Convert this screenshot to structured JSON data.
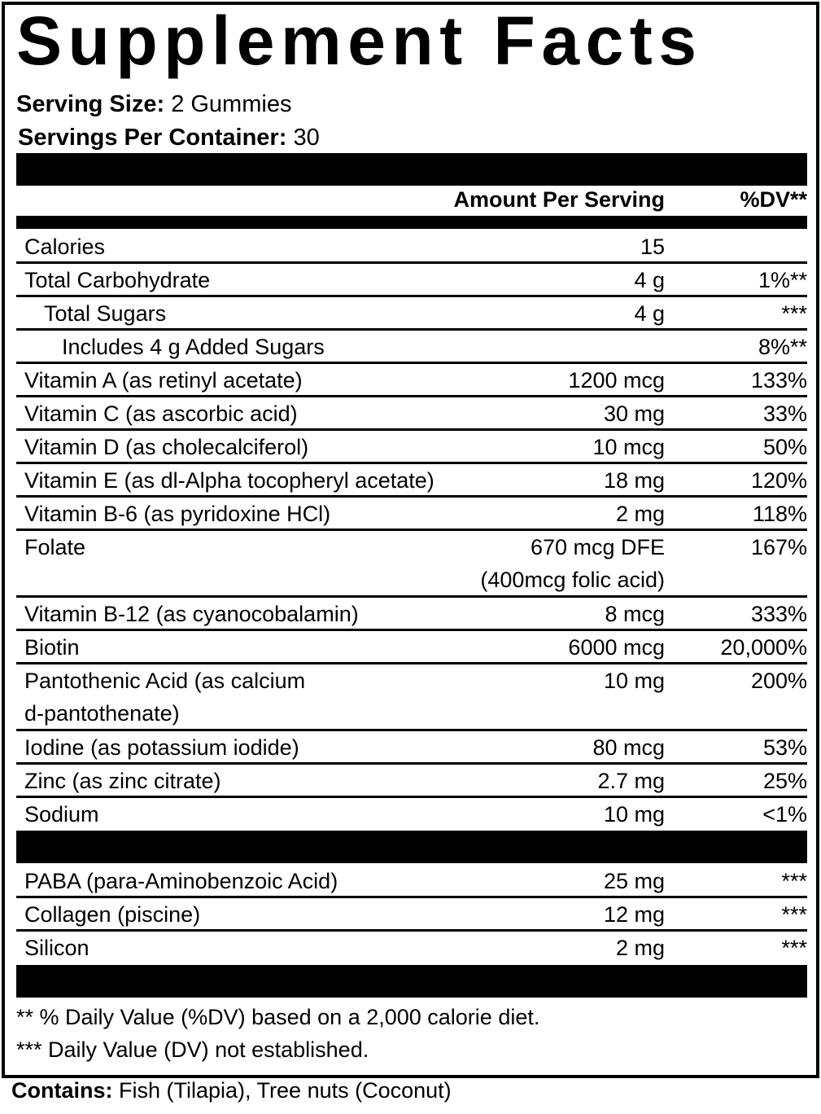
{
  "title": "Supplement Facts",
  "serving_size": {
    "label": "Serving Size:",
    "value": "2 Gummies"
  },
  "servings_per_container": {
    "label": "Servings Per Container:",
    "value": "30"
  },
  "header": {
    "amount": "Amount Per Serving",
    "dv": "%DV**"
  },
  "rows": [
    {
      "name": "Calories",
      "amount": "15",
      "dv": "",
      "indent": 0
    },
    {
      "name": "Total Carbohydrate",
      "amount": "4 g",
      "dv": "1%**",
      "indent": 0
    },
    {
      "name": "Total Sugars",
      "amount": "4 g",
      "dv": "***",
      "indent": 1
    },
    {
      "name": "Includes 4 g Added Sugars",
      "amount": "",
      "dv": "8%**",
      "indent": 2
    },
    {
      "name": "Vitamin A (as retinyl acetate)",
      "amount": "1200 mcg",
      "dv": "133%",
      "indent": 0
    },
    {
      "name": "Vitamin C (as ascorbic acid)",
      "amount": "30 mg",
      "dv": "33%",
      "indent": 0
    },
    {
      "name": "Vitamin D (as cholecalciferol)",
      "amount": "10 mcg",
      "dv": "50%",
      "indent": 0
    },
    {
      "name": "Vitamin E (as dl-Alpha tocopheryl acetate)",
      "amount": "18 mg",
      "dv": "120%",
      "indent": 0
    },
    {
      "name": "Vitamin B-6 (as pyridoxine HCl)",
      "amount": "2 mg",
      "dv": "118%",
      "indent": 0
    },
    {
      "name": "Folate",
      "amount": "670 mcg DFE",
      "amount_line2": "(400mcg folic acid)",
      "dv": "167%",
      "indent": 0
    },
    {
      "name": "Vitamin B-12 (as cyanocobalamin)",
      "amount": "8 mcg",
      "dv": "333%",
      "indent": 0
    },
    {
      "name": "Biotin",
      "amount": "6000 mcg",
      "dv": "20,000%",
      "indent": 0
    },
    {
      "name": "Pantothenic Acid (as calcium",
      "name_line2": "d-pantothenate)",
      "amount": "10 mg",
      "dv": "200%",
      "indent": 0
    },
    {
      "name": "Iodine (as potassium iodide)",
      "amount": "80 mcg",
      "dv": "53%",
      "indent": 0
    },
    {
      "name": "Zinc (as zinc citrate)",
      "amount": "2.7 mg",
      "dv": "25%",
      "indent": 0
    },
    {
      "name": "Sodium",
      "amount": "10 mg",
      "dv": "<1%",
      "indent": 0
    }
  ],
  "other_rows": [
    {
      "name": "PABA (para-Aminobenzoic Acid)",
      "amount": "25 mg",
      "dv": "***"
    },
    {
      "name": "Collagen (piscine)",
      "amount": "12 mg",
      "dv": "***"
    },
    {
      "name": "Silicon",
      "amount": "2 mg",
      "dv": "***"
    }
  ],
  "footnotes": [
    "** % Daily Value (%DV) based on a 2,000 calorie diet.",
    "*** Daily Value (DV) not established."
  ],
  "contains": {
    "label": "Contains:",
    "value": "Fish (Tilapia), Tree nuts (Coconut)"
  }
}
